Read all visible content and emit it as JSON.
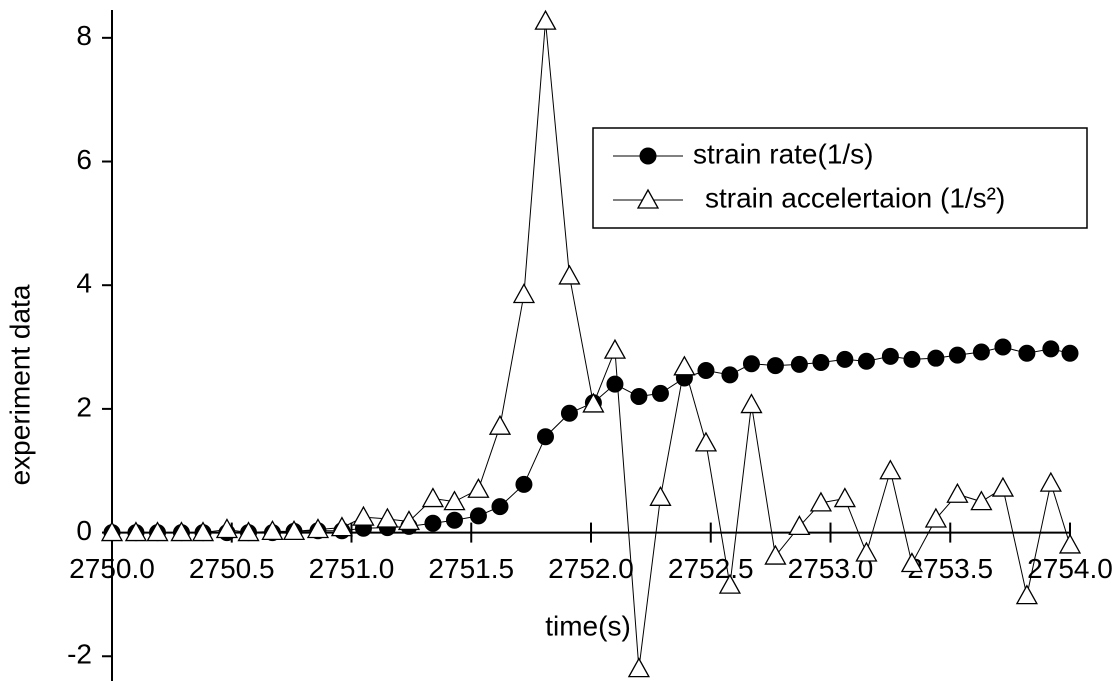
{
  "chart_data": {
    "type": "line",
    "x_label": "time(s)",
    "y_label": "experiment data",
    "x": [
      2750.0,
      2750.1,
      2750.19,
      2750.29,
      2750.38,
      2750.48,
      2750.57,
      2750.67,
      2750.76,
      2750.86,
      2750.96,
      2751.05,
      2751.15,
      2751.24,
      2751.34,
      2751.43,
      2751.53,
      2751.62,
      2751.72,
      2751.81,
      2751.91,
      2752.01,
      2752.1,
      2752.2,
      2752.29,
      2752.39,
      2752.48,
      2752.58,
      2752.67,
      2752.77,
      2752.87,
      2752.96,
      2753.06,
      2753.15,
      2753.25,
      2753.34,
      2753.44,
      2753.53,
      2753.63,
      2753.72,
      2753.82,
      2753.92,
      2754.0
    ],
    "series": [
      {
        "name": "strain rate(1/s)",
        "color": "#000000",
        "marker": "circle",
        "values": [
          0,
          0,
          0,
          0,
          0,
          0,
          0,
          0,
          0.02,
          0.03,
          0.03,
          0.07,
          0.08,
          0.1,
          0.15,
          0.2,
          0.27,
          0.42,
          0.78,
          1.55,
          1.93,
          2.1,
          2.4,
          2.2,
          2.25,
          2.5,
          2.62,
          2.55,
          2.73,
          2.7,
          2.72,
          2.75,
          2.8,
          2.77,
          2.85,
          2.8,
          2.82,
          2.87,
          2.92,
          3.0,
          2.9,
          2.97,
          2.9
        ]
      },
      {
        "name": "strain accelertaion (1/s²)",
        "color": "#000000",
        "marker": "triangle",
        "values": [
          0,
          0,
          0,
          0,
          0,
          0.05,
          0,
          0.02,
          0.02,
          0.05,
          0.08,
          0.25,
          0.22,
          0.18,
          0.55,
          0.5,
          0.7,
          1.72,
          3.85,
          8.27,
          4.15,
          2.08,
          2.95,
          -2.2,
          0.57,
          2.68,
          1.45,
          -0.85,
          2.07,
          -0.38,
          0.1,
          0.48,
          0.55,
          -0.33,
          1.0,
          -0.5,
          0.22,
          0.62,
          0.5,
          0.72,
          -1.02,
          0.8,
          -0.2
        ]
      }
    ],
    "xlim": [
      2750.0,
      2754.0
    ],
    "xticks": [
      {
        "value": 2750.0,
        "label": "2750.0"
      },
      {
        "value": 2750.5,
        "label": "2750.5"
      },
      {
        "value": 2751.0,
        "label": "2751.0"
      },
      {
        "value": 2751.5,
        "label": "2751.5"
      },
      {
        "value": 2752.0,
        "label": "2752.0"
      },
      {
        "value": 2752.5,
        "label": "2752.5"
      },
      {
        "value": 2753.0,
        "label": "2753.0"
      },
      {
        "value": 2753.5,
        "label": "2753.5"
      },
      {
        "value": 2754.0,
        "label": "2754.0"
      }
    ],
    "ylim": [
      -2.4,
      8.45
    ],
    "yticks": [
      -2,
      0,
      2,
      4,
      6,
      8
    ],
    "legend": "upper right",
    "grid": false
  }
}
